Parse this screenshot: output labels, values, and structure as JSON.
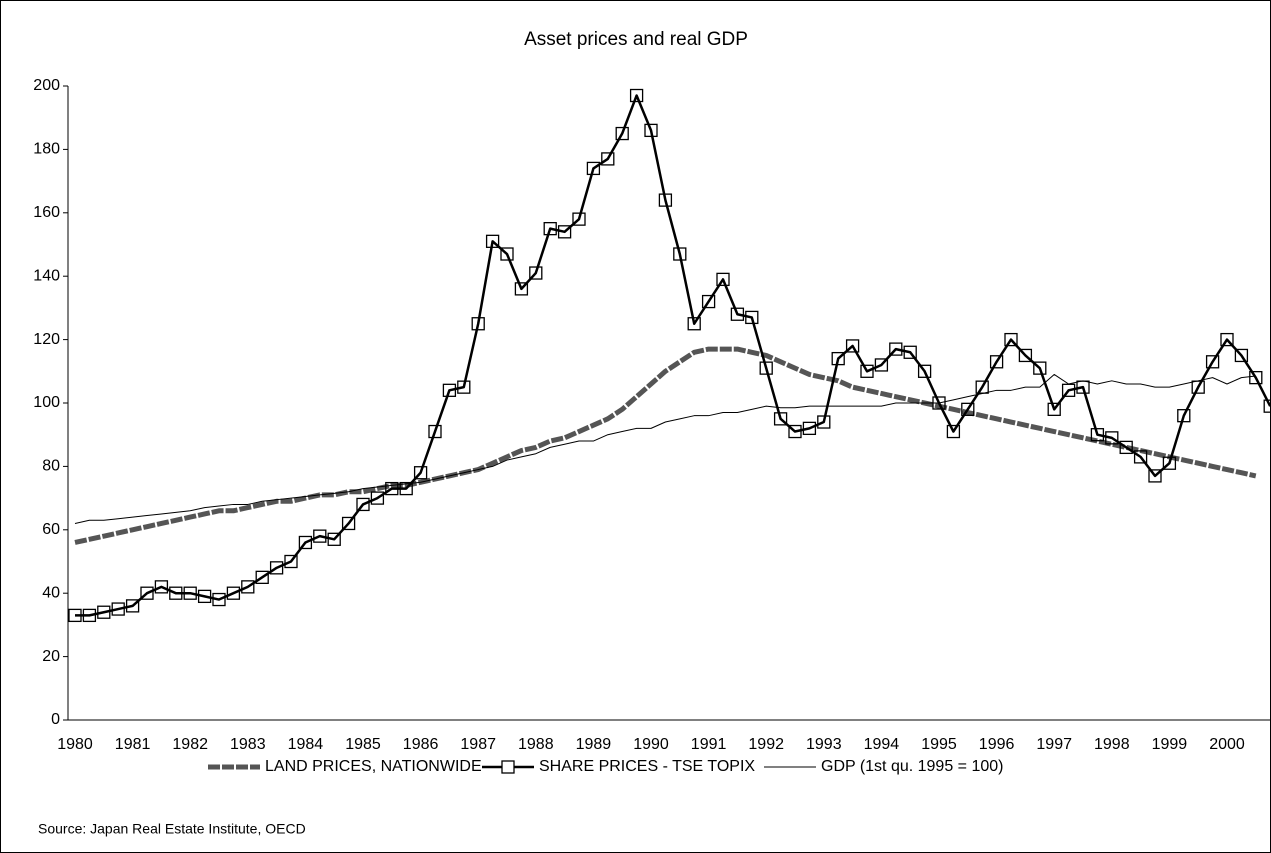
{
  "chart_data": {
    "type": "line",
    "title": "Asset prices and real GDP",
    "categories": [
      "1980",
      null,
      null,
      null,
      "1981",
      null,
      null,
      null,
      "1982",
      null,
      null,
      null,
      "1983",
      null,
      null,
      null,
      "1984",
      null,
      null,
      null,
      "1985",
      null,
      null,
      null,
      "1986",
      null,
      null,
      null,
      "1987",
      null,
      null,
      null,
      "1988",
      null,
      null,
      null,
      "1989",
      null,
      null,
      null,
      "1990",
      null,
      null,
      null,
      "1991",
      null,
      null,
      null,
      "1992",
      null,
      null,
      null,
      "1993",
      null,
      null,
      null,
      "1994",
      null,
      null,
      null,
      "1995",
      null,
      null,
      null,
      "1996",
      null,
      null,
      null,
      "1997",
      null,
      null,
      null,
      "1998",
      null,
      null,
      null,
      "1999",
      null,
      null,
      null,
      "2000",
      null,
      null,
      null
    ],
    "series": [
      {
        "name": "LAND PRICES, NATIONWIDE",
        "color": "#555555",
        "values": [
          56,
          57,
          58,
          59,
          60,
          61,
          62,
          63,
          64,
          65,
          66,
          66,
          67,
          68,
          69,
          69,
          70,
          71,
          71,
          72,
          72,
          73,
          74,
          74,
          75,
          76,
          77,
          78,
          79,
          81,
          83,
          85,
          86,
          88,
          89,
          91,
          93,
          95,
          98,
          102,
          106,
          110,
          113,
          116,
          117,
          117,
          117,
          116,
          115,
          113,
          111,
          109,
          108,
          107,
          105,
          104,
          103,
          102,
          101,
          100,
          99,
          98,
          97,
          96,
          95,
          94,
          93,
          92,
          91,
          90,
          89,
          88,
          87,
          86,
          85,
          84,
          83,
          82,
          81,
          80,
          79,
          78,
          77,
          null
        ]
      },
      {
        "name": "SHARE PRICES - TSE TOPIX",
        "color": "#000000",
        "values": [
          33,
          33,
          34,
          35,
          36,
          40,
          42,
          40,
          40,
          39,
          38,
          40,
          42,
          45,
          48,
          50,
          56,
          58,
          57,
          62,
          68,
          70,
          73,
          73,
          78,
          91,
          104,
          105,
          125,
          151,
          147,
          136,
          141,
          155,
          154,
          158,
          174,
          177,
          185,
          197,
          186,
          164,
          147,
          125,
          132,
          139,
          128,
          127,
          111,
          95,
          91,
          92,
          94,
          114,
          118,
          110,
          112,
          117,
          116,
          110,
          100,
          91,
          98,
          105,
          113,
          120,
          115,
          111,
          98,
          104,
          105,
          90,
          89,
          86,
          83,
          77,
          81,
          96,
          105,
          113,
          120,
          115,
          108,
          99
        ]
      },
      {
        "name": "GDP (1st qu. 1995 = 100)",
        "color": "#000000",
        "values": [
          62,
          63,
          63,
          63.5,
          64,
          64.5,
          65,
          65.5,
          66,
          67,
          67.5,
          68,
          68,
          69,
          69.5,
          70,
          70.5,
          71,
          71.5,
          72,
          73,
          73.5,
          74,
          74.5,
          75,
          76,
          77,
          78,
          79,
          80,
          82,
          83,
          84,
          86,
          87,
          88,
          88,
          90,
          91,
          92,
          92,
          94,
          95,
          96,
          96,
          97,
          97,
          98,
          99,
          98.5,
          98.5,
          99,
          99,
          99,
          99,
          99,
          99,
          100,
          100,
          100,
          100,
          101,
          102,
          103,
          104,
          104,
          105,
          105,
          109,
          106,
          107,
          106,
          107,
          106,
          106,
          105,
          105,
          106,
          107,
          108,
          106,
          108,
          108.5,
          null
        ]
      }
    ],
    "ylim": [
      0,
      200
    ],
    "yticks": [
      0,
      20,
      40,
      60,
      80,
      100,
      120,
      140,
      160,
      180,
      200
    ],
    "grid": false,
    "legend": "bottom",
    "source": "Source: Japan Real Estate Institute, OECD"
  }
}
